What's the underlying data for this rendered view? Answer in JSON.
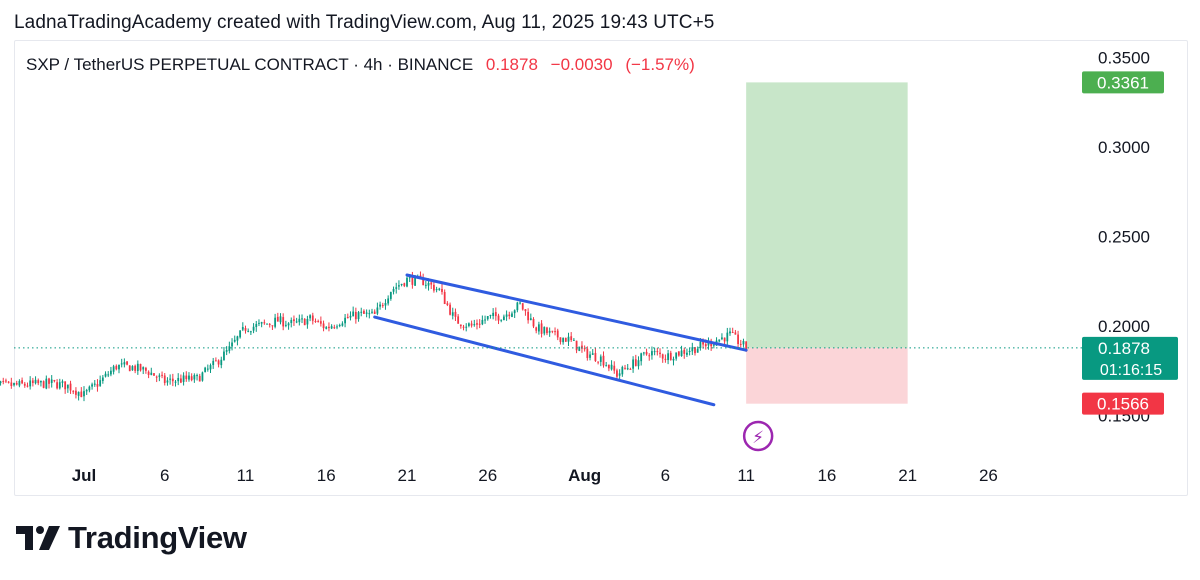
{
  "header": {
    "text": "LadnaTradingAcademy created with TradingView.com, Aug 11, 2025 19:43 UTC+5"
  },
  "legend": {
    "symbol": "SXP / TetherUS PERPETUAL CONTRACT · 4h · BINANCE",
    "last": "0.1878",
    "change": "−0.0030",
    "change_pct": "(−1.57%)"
  },
  "brand": {
    "name": "TradingView"
  },
  "colors": {
    "up": "#089981",
    "down": "#f23645",
    "channel": "#2f5be0",
    "profit": "#c8e6c9",
    "loss": "#fbd5d8",
    "last_price": "#089981",
    "target": "#4caf50",
    "stop": "#f23645",
    "event": "#9c27b0"
  },
  "chart_data": {
    "type": "candlestick",
    "symbol": "SXPUSDT.P",
    "interval": "4h",
    "x_ticks": [
      {
        "date": "2025-07-01",
        "label": "Jul",
        "bold": true
      },
      {
        "date": "2025-07-06",
        "label": "6"
      },
      {
        "date": "2025-07-11",
        "label": "11"
      },
      {
        "date": "2025-07-16",
        "label": "16"
      },
      {
        "date": "2025-07-21",
        "label": "21"
      },
      {
        "date": "2025-07-26",
        "label": "26"
      },
      {
        "date": "2025-08-01",
        "label": "Aug",
        "bold": true
      },
      {
        "date": "2025-08-06",
        "label": "6"
      },
      {
        "date": "2025-08-11",
        "label": "11"
      },
      {
        "date": "2025-08-16",
        "label": "16"
      },
      {
        "date": "2025-08-21",
        "label": "21"
      },
      {
        "date": "2025-08-26",
        "label": "26"
      }
    ],
    "y_ticks": [
      {
        "value": 0.15,
        "label": "0.1500"
      },
      {
        "value": 0.2,
        "label": "0.2000"
      },
      {
        "value": 0.25,
        "label": "0.2500"
      },
      {
        "value": 0.3,
        "label": "0.3000"
      },
      {
        "value": 0.35,
        "label": "0.3500"
      }
    ],
    "price_path": [
      [
        "2025-06-25",
        0.1665
      ],
      [
        "2025-06-27",
        0.167
      ],
      [
        "2025-06-29",
        0.168
      ],
      [
        "2025-06-30",
        0.1665
      ],
      [
        "2025-07-01",
        0.1615
      ],
      [
        "2025-07-02",
        0.169
      ],
      [
        "2025-07-03",
        0.1775
      ],
      [
        "2025-07-04",
        0.177
      ],
      [
        "2025-07-05",
        0.1745
      ],
      [
        "2025-07-06",
        0.169
      ],
      [
        "2025-07-07",
        0.17
      ],
      [
        "2025-07-08",
        0.1705
      ],
      [
        "2025-07-09",
        0.178
      ],
      [
        "2025-07-10",
        0.187
      ],
      [
        "2025-07-11",
        0.199
      ],
      [
        "2025-07-12",
        0.2005
      ],
      [
        "2025-07-13",
        0.203
      ],
      [
        "2025-07-14",
        0.201
      ],
      [
        "2025-07-15",
        0.204
      ],
      [
        "2025-07-16",
        0.199
      ],
      [
        "2025-07-17",
        0.2035
      ],
      [
        "2025-07-18",
        0.2065
      ],
      [
        "2025-07-19",
        0.206
      ],
      [
        "2025-07-20",
        0.22
      ],
      [
        "2025-07-21",
        0.226
      ],
      [
        "2025-07-22",
        0.225
      ],
      [
        "2025-07-23",
        0.22
      ],
      [
        "2025-07-24",
        0.203
      ],
      [
        "2025-07-25",
        0.2
      ],
      [
        "2025-07-26",
        0.2045
      ],
      [
        "2025-07-27",
        0.206
      ],
      [
        "2025-07-28",
        0.212
      ],
      [
        "2025-07-29",
        0.199
      ],
      [
        "2025-07-30",
        0.195
      ],
      [
        "2025-07-31",
        0.1925
      ],
      [
        "2025-08-01",
        0.185
      ],
      [
        "2025-08-02",
        0.182
      ],
      [
        "2025-08-03",
        0.173
      ],
      [
        "2025-08-04",
        0.179
      ],
      [
        "2025-08-05",
        0.1855
      ],
      [
        "2025-08-06",
        0.183
      ],
      [
        "2025-08-07",
        0.1855
      ],
      [
        "2025-08-08",
        0.188
      ],
      [
        "2025-08-09",
        0.1915
      ],
      [
        "2025-08-10",
        0.195
      ],
      [
        "2025-08-11",
        0.1878
      ]
    ],
    "channel": {
      "upper": [
        [
          "2025-07-21",
          0.2285
        ],
        [
          "2025-08-11",
          0.1865
        ]
      ],
      "lower": [
        [
          "2025-07-19",
          0.205
        ],
        [
          "2025-08-09",
          0.156
        ]
      ]
    },
    "position": {
      "type": "long",
      "start": "2025-08-11",
      "end": "2025-08-21",
      "entry": 0.1878,
      "target": 0.3361,
      "stop": 0.1566
    },
    "last_price": {
      "value": 0.1878,
      "label": "0.1878",
      "countdown": "01:16:15"
    },
    "target_label": "0.3361",
    "stop_label": "0.1566",
    "event_marker": {
      "date": "2025-08-11",
      "symbol": "⚡"
    }
  }
}
